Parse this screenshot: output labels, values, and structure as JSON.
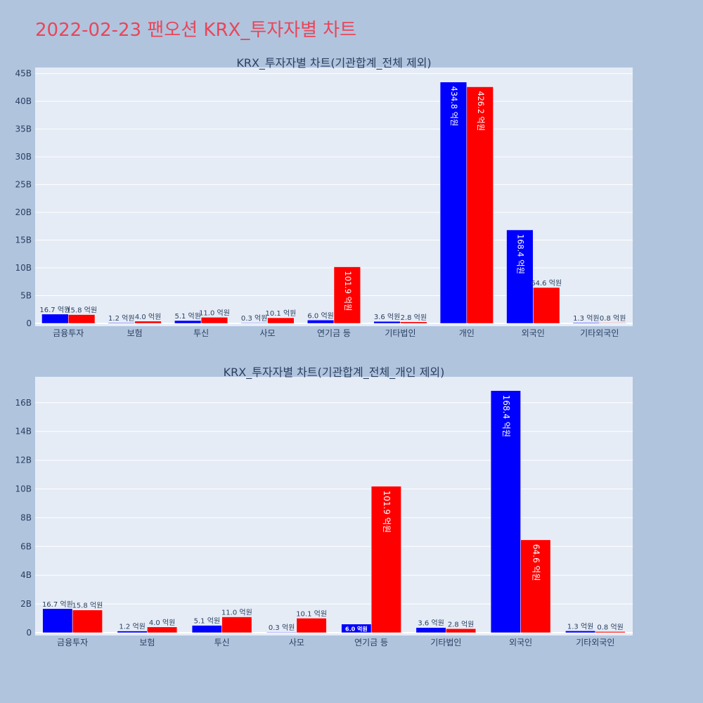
{
  "page_title": "2022-02-23 팬오션 KRX_투자자별 차트",
  "colors": {
    "background": "#b0c4de",
    "plot_bg": "#e5ecf6",
    "buy": "#0000ff",
    "sell": "#ff0000",
    "title": "#e8465a",
    "text": "#2a3f5f"
  },
  "chart_data": [
    {
      "type": "bar",
      "title": "KRX_투자자별 차트(기관합계_전체 제외)",
      "categories": [
        "금융투자",
        "보험",
        "투신",
        "사모",
        "연기금 등",
        "기타법인",
        "개인",
        "외국인",
        "기타외국인"
      ],
      "series": [
        {
          "color": "#0000ff",
          "values": [
            1.67,
            0.12,
            0.51,
            0.03,
            0.6,
            0.36,
            43.48,
            16.84,
            0.13
          ],
          "labels": [
            "16.7 억원",
            "1.2 억원",
            "5.1 억원",
            "0.3 억원",
            "6.0 억원",
            "3.6 억원",
            "434.8 억원",
            "168.4 억원",
            "1.3 억원"
          ]
        },
        {
          "color": "#ff0000",
          "values": [
            1.58,
            0.4,
            1.1,
            1.01,
            10.19,
            0.28,
            42.62,
            6.46,
            0.08
          ],
          "labels": [
            "15.8 억원",
            "4.0 억원",
            "11.0 억원",
            "10.1 억원",
            "101.9 억원",
            "2.8 억원",
            "426.2 억원",
            "64.6 억원",
            "0.8 억원"
          ]
        }
      ],
      "ylim": [
        0,
        46.1
      ],
      "yticks": [
        0,
        5,
        10,
        15,
        20,
        25,
        30,
        35,
        40,
        45
      ],
      "ytick_labels": [
        "0",
        "5B",
        "10B",
        "15B",
        "20B",
        "25B",
        "30B",
        "35B",
        "40B",
        "45B"
      ],
      "grid": true
    },
    {
      "type": "bar",
      "title": "KRX_투자자별 차트(기관합계_전체_개인 제외)",
      "categories": [
        "금융투자",
        "보험",
        "투신",
        "사모",
        "연기금 등",
        "기타법인",
        "외국인",
        "기타외국인"
      ],
      "series": [
        {
          "color": "#0000ff",
          "values": [
            1.67,
            0.12,
            0.51,
            0.03,
            0.6,
            0.36,
            16.84,
            0.13
          ],
          "labels": [
            "16.7 억원",
            "1.2 억원",
            "5.1 억원",
            "0.3 억원",
            "6.0 억원",
            "3.6 억원",
            "168.4 억원",
            "1.3 억원"
          ]
        },
        {
          "color": "#ff0000",
          "values": [
            1.58,
            0.4,
            1.1,
            1.01,
            10.19,
            0.28,
            6.46,
            0.08
          ],
          "labels": [
            "15.8 억원",
            "4.0 억원",
            "11.0 억원",
            "10.1 억원",
            "101.9 억원",
            "2.8 억원",
            "64.6 억원",
            "0.8 억원"
          ]
        }
      ],
      "ylim": [
        0,
        17.8
      ],
      "yticks": [
        0,
        2,
        4,
        6,
        8,
        10,
        12,
        14,
        16
      ],
      "ytick_labels": [
        "0",
        "2B",
        "4B",
        "6B",
        "8B",
        "10B",
        "12B",
        "14B",
        "16B"
      ],
      "grid": true
    }
  ]
}
